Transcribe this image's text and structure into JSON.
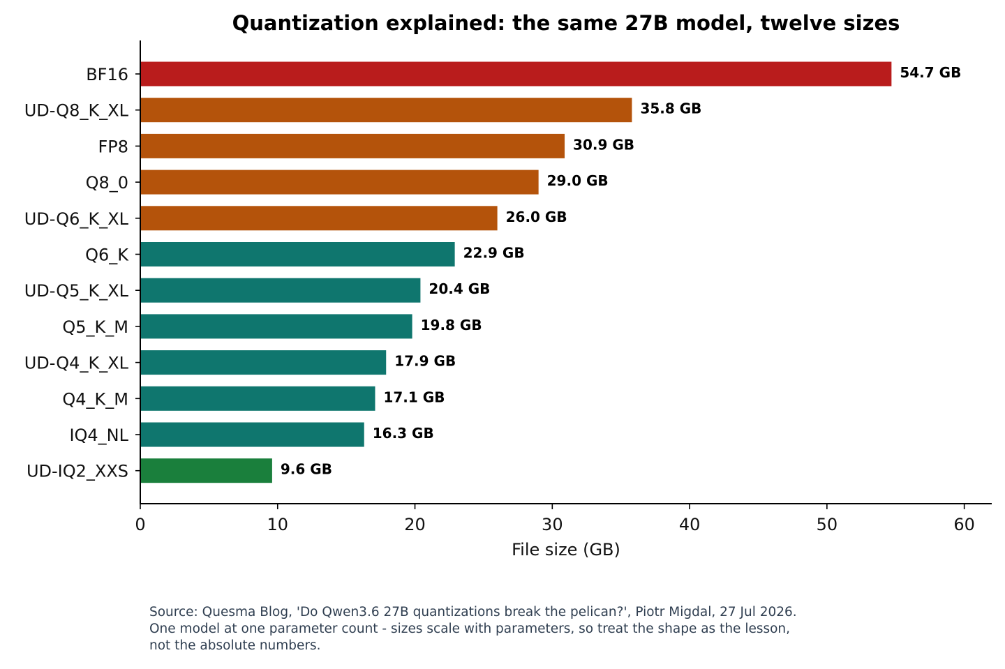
{
  "chart_data": {
    "type": "bar",
    "orientation": "horizontal",
    "title": "Quantization explained: the same 27B model, twelve sizes",
    "xlabel": "File size (GB)",
    "ylabel": "",
    "xlim": [
      0,
      62
    ],
    "xticks": [
      0,
      10,
      20,
      30,
      40,
      50,
      60
    ],
    "grid": false,
    "categories": [
      "BF16",
      "UD-Q8_K_XL",
      "FP8",
      "Q8_0",
      "UD-Q6_K_XL",
      "Q6_K",
      "UD-Q5_K_XL",
      "Q5_K_M",
      "UD-Q4_K_XL",
      "Q4_K_M",
      "IQ4_NL",
      "UD-IQ2_XXS"
    ],
    "values": [
      54.7,
      35.8,
      30.9,
      29.0,
      26.0,
      22.9,
      20.4,
      19.8,
      17.9,
      17.1,
      16.3,
      9.6
    ],
    "value_labels": [
      "54.7 GB",
      "35.8 GB",
      "30.9 GB",
      "29.0 GB",
      "26.0 GB",
      "22.9 GB",
      "20.4 GB",
      "19.8 GB",
      "17.9 GB",
      "17.1 GB",
      "16.3 GB",
      "9.6 GB"
    ],
    "bar_colors": [
      "#b91c1c",
      "#b4530b",
      "#b4530b",
      "#b4530b",
      "#b4530b",
      "#0f766e",
      "#0f766e",
      "#0f766e",
      "#0f766e",
      "#0f766e",
      "#0f766e",
      "#1a7f3c"
    ]
  },
  "source_note": {
    "line1": "Source: Quesma Blog, 'Do Qwen3.6 27B quantizations break the pelican?', Piotr Migdal, 27 Jul 2026.",
    "line2": "One model at one parameter count - sizes scale with parameters, so treat the shape as the lesson,",
    "line3": "not the absolute numbers."
  }
}
